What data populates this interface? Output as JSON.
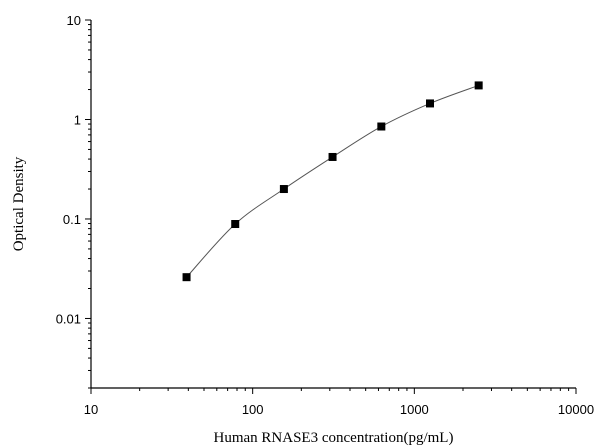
{
  "chart_data": {
    "type": "scatter",
    "xlabel": "Human RNASE3 concentration(pg/mL)",
    "ylabel": "Optical Density",
    "x_scale": "log",
    "y_scale": "log",
    "xlim": [
      10,
      10000
    ],
    "ylim": [
      0.002,
      10
    ],
    "x_ticks": [
      {
        "value": 10,
        "label": "10"
      },
      {
        "value": 100,
        "label": "100"
      },
      {
        "value": 1000,
        "label": "1000"
      },
      {
        "value": 10000,
        "label": "10000"
      }
    ],
    "y_ticks": [
      {
        "value": 0.01,
        "label": "0.01"
      },
      {
        "value": 0.1,
        "label": "0.1"
      },
      {
        "value": 1,
        "label": "1"
      },
      {
        "value": 10,
        "label": "10"
      }
    ],
    "grid": false,
    "series": [
      {
        "x": [
          39,
          78,
          156,
          312,
          625,
          1250,
          2500
        ],
        "y": [
          0.026,
          0.089,
          0.2,
          0.42,
          0.85,
          1.45,
          2.2
        ],
        "marker": "square",
        "fit_line": true
      }
    ],
    "colors": {
      "marker": "#000000",
      "line": "#555555",
      "axis": "#000000"
    }
  }
}
